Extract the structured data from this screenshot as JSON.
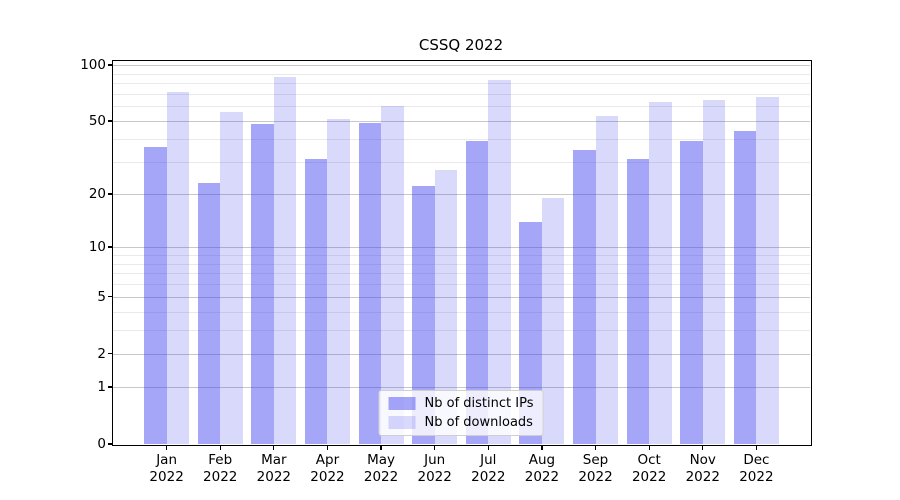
{
  "figure": {
    "title": "CSSQ 2022",
    "background": "#ffffff"
  },
  "chart_data": {
    "type": "bar",
    "title": "CSSQ 2022",
    "x": {
      "months": [
        "Jan",
        "Feb",
        "Mar",
        "Apr",
        "May",
        "Jun",
        "Jul",
        "Aug",
        "Sep",
        "Oct",
        "Nov",
        "Dec"
      ],
      "year": "2022"
    },
    "series": [
      {
        "name": "Nb of distinct IPs",
        "color": "rgba(60,60,240,0.46)",
        "values": [
          36,
          23,
          48,
          31,
          49,
          22,
          39,
          14,
          35,
          31,
          39,
          44
        ]
      },
      {
        "name": "Nb of downloads",
        "color": "rgba(60,60,240,0.195)",
        "values": [
          72,
          56,
          86,
          51,
          60,
          27,
          83,
          19,
          53,
          63,
          65,
          67
        ]
      }
    ],
    "y_axis": {
      "scale": "symlog",
      "ticks": [
        100,
        50,
        20,
        10,
        5,
        2,
        1,
        0
      ],
      "minor_ticks": [
        90,
        80,
        70,
        60,
        40,
        30,
        9,
        8,
        7,
        6,
        4,
        3
      ],
      "max": 105,
      "min": 0
    },
    "grid": true,
    "legend_position": "lower center"
  },
  "colors": {
    "grid_major": "#c8c8c8",
    "grid_minor": "#e9e9e9",
    "spine": "#000000",
    "text": "#000000"
  }
}
